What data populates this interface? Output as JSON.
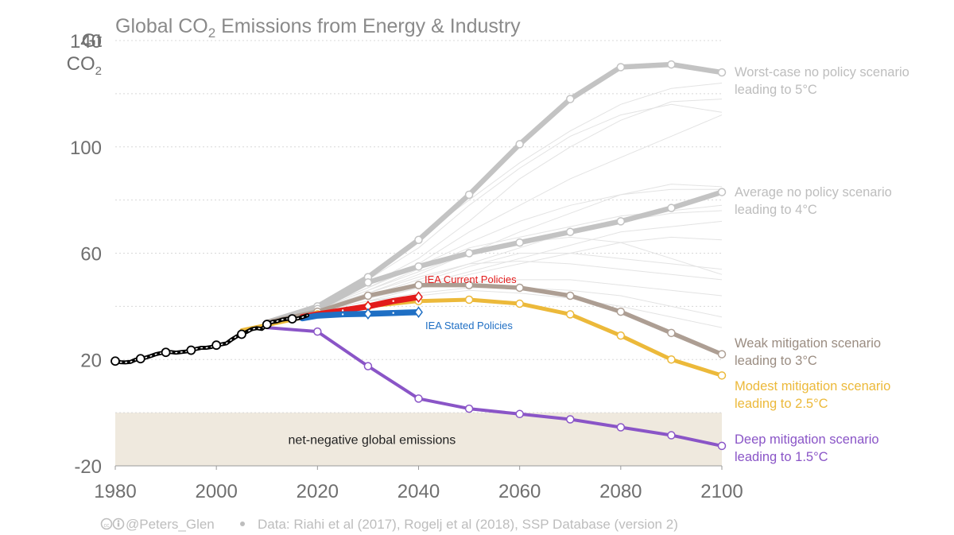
{
  "colors": {
    "grid": "#d8d8d8",
    "bundle": "#e3e3e3",
    "worst": "#c3c3c3",
    "average": "#c3c3c3",
    "weak": "#ad9e93",
    "modest": "#ecb93a",
    "deep": "#8a55c7",
    "iea_current": "#e21b1b",
    "iea_stated": "#1f6fc4",
    "historical": "#000000",
    "negative_region": "#efe9de"
  },
  "chart_data": {
    "type": "line",
    "title_prefix": "Global CO",
    "title_sub": "2",
    "title_suffix": " Emissions from Energy & Industry",
    "y_unit_line1": "Gt",
    "y_unit_line2_prefix": "CO",
    "y_unit_line2_sub": "2",
    "xlim": [
      1980,
      2100
    ],
    "ylim": [
      -20,
      140
    ],
    "x_ticks": [
      1980,
      2000,
      2020,
      2040,
      2060,
      2080,
      2100
    ],
    "y_ticks": [
      -20,
      20,
      60,
      100,
      140
    ],
    "grid": "horizontal dotted",
    "negative_region": {
      "y_from": -20,
      "y_to": 0,
      "label": "net-negative global emissions"
    },
    "historical": {
      "x": [
        1980,
        1981,
        1982,
        1983,
        1984,
        1985,
        1986,
        1987,
        1988,
        1989,
        1990,
        1991,
        1992,
        1993,
        1994,
        1995,
        1996,
        1997,
        1998,
        1999,
        2000,
        2001,
        2002,
        2003,
        2004,
        2005,
        2006,
        2007,
        2008,
        2009,
        2010,
        2011,
        2012,
        2013,
        2014,
        2015,
        2016,
        2017,
        2018
      ],
      "y": [
        19.4,
        19.0,
        18.9,
        19.1,
        19.9,
        20.3,
        20.7,
        21.3,
        22.0,
        22.4,
        22.7,
        22.8,
        22.6,
        22.8,
        23.0,
        23.5,
        24.0,
        24.4,
        24.4,
        24.7,
        25.4,
        25.7,
        26.1,
        27.5,
        28.7,
        29.5,
        30.4,
        31.4,
        31.8,
        31.5,
        33.2,
        34.1,
        34.4,
        35.0,
        35.3,
        35.3,
        35.4,
        35.9,
        36.6
      ],
      "markers_x": [
        1980,
        1985,
        1990,
        1995,
        2000,
        2005,
        2010,
        2015
      ],
      "markers_y": [
        19.4,
        20.3,
        22.7,
        23.5,
        25.4,
        29.5,
        33.2,
        35.3
      ]
    },
    "series": [
      {
        "key": "worst",
        "label_line1": "Worst-case no policy scenario",
        "label_line2": "leading to 5°C",
        "x": [
          2010,
          2020,
          2030,
          2040,
          2050,
          2060,
          2070,
          2080,
          2090,
          2100
        ],
        "y": [
          34,
          40,
          51,
          65,
          82,
          101,
          118,
          130,
          131,
          128
        ]
      },
      {
        "key": "average",
        "label_line1": "Average no policy scenario",
        "label_line2": "leading to 4°C",
        "x": [
          2010,
          2020,
          2030,
          2040,
          2050,
          2060,
          2070,
          2080,
          2090,
          2100
        ],
        "y": [
          34,
          39,
          49,
          55,
          60,
          64,
          68,
          72,
          77,
          83
        ]
      },
      {
        "key": "weak",
        "label_line1": "Weak mitigation scenario",
        "label_line2": "leading to 3°C",
        "x": [
          2010,
          2020,
          2030,
          2040,
          2050,
          2060,
          2070,
          2080,
          2090,
          2100
        ],
        "y": [
          34,
          38,
          44,
          48,
          48,
          47,
          44,
          38,
          30,
          22
        ]
      },
      {
        "key": "modest",
        "label_line1": "Modest mitigation scenario",
        "label_line2": "leading to 2.5°C",
        "x": [
          2005,
          2010,
          2020,
          2030,
          2040,
          2050,
          2060,
          2070,
          2080,
          2090,
          2100
        ],
        "y": [
          31,
          33,
          37,
          40,
          42,
          42.5,
          41,
          37,
          29,
          20,
          14
        ]
      },
      {
        "key": "deep",
        "label_line1": "Deep mitigation scenario",
        "label_line2": "leading to 1.5°C",
        "x": [
          2010,
          2020,
          2030,
          2040,
          2050,
          2060,
          2070,
          2080,
          2090,
          2100
        ],
        "y": [
          32,
          30.5,
          17.5,
          5.3,
          1.5,
          -0.5,
          -2.5,
          -5.5,
          -8.5,
          -12.5
        ]
      },
      {
        "key": "iea_current",
        "label_line1": "IEA Current Policies",
        "x": [
          2017,
          2020,
          2025,
          2030,
          2035,
          2040
        ],
        "y": [
          36,
          37,
          38.5,
          40,
          42,
          43.5
        ]
      },
      {
        "key": "iea_stated",
        "label_line1": "IEA Stated Policies",
        "x": [
          2017,
          2020,
          2025,
          2030,
          2035,
          2040
        ],
        "y": [
          35.5,
          36.5,
          37,
          37.2,
          37.5,
          37.8
        ]
      }
    ],
    "background_bundle": [
      [
        2010,
        34,
        2020,
        39,
        2030,
        45,
        2040,
        52,
        2050,
        60,
        2060,
        68,
        2070,
        75,
        2080,
        82,
        2090,
        86,
        2100,
        85
      ],
      [
        2010,
        34,
        2020,
        40,
        2030,
        48,
        2040,
        58,
        2050,
        72,
        2060,
        88,
        2070,
        100,
        2080,
        110,
        2090,
        117,
        2100,
        118
      ],
      [
        2010,
        34,
        2020,
        40,
        2030,
        50,
        2040,
        62,
        2050,
        78,
        2060,
        92,
        2070,
        104,
        2080,
        112,
        2090,
        116,
        2100,
        113
      ],
      [
        2010,
        34,
        2020,
        39,
        2030,
        47,
        2040,
        56,
        2050,
        68,
        2060,
        78,
        2070,
        88,
        2080,
        96,
        2090,
        104,
        2100,
        112
      ],
      [
        2010,
        34,
        2020,
        39,
        2030,
        46,
        2040,
        54,
        2050,
        62,
        2060,
        66,
        2070,
        70,
        2080,
        74,
        2090,
        76,
        2100,
        78
      ],
      [
        2010,
        34,
        2020,
        38,
        2030,
        44,
        2040,
        50,
        2050,
        56,
        2060,
        62,
        2070,
        68,
        2080,
        72,
        2090,
        75,
        2100,
        76
      ],
      [
        2010,
        34,
        2020,
        38,
        2030,
        43,
        2040,
        48,
        2050,
        53,
        2060,
        58,
        2070,
        63,
        2080,
        68,
        2090,
        70,
        2100,
        72
      ],
      [
        2010,
        34,
        2020,
        38,
        2030,
        42,
        2040,
        47,
        2050,
        52,
        2060,
        56,
        2070,
        60,
        2080,
        64,
        2090,
        66,
        2100,
        65
      ],
      [
        2010,
        34,
        2020,
        39,
        2030,
        45,
        2040,
        51,
        2050,
        56,
        2060,
        57,
        2070,
        56,
        2080,
        54,
        2090,
        52,
        2100,
        50
      ],
      [
        2010,
        34,
        2020,
        38,
        2030,
        43,
        2040,
        47,
        2050,
        49,
        2060,
        50,
        2070,
        50,
        2080,
        48,
        2090,
        46,
        2100,
        44
      ],
      [
        2010,
        34,
        2020,
        38,
        2030,
        42,
        2040,
        45,
        2050,
        47,
        2060,
        47,
        2070,
        46,
        2080,
        44,
        2090,
        40,
        2100,
        36
      ],
      [
        2010,
        34,
        2020,
        38,
        2030,
        42,
        2040,
        44,
        2050,
        46,
        2060,
        45,
        2070,
        43,
        2080,
        40,
        2090,
        36,
        2100,
        32
      ],
      [
        2010,
        34,
        2020,
        39,
        2030,
        46,
        2040,
        53,
        2050,
        60,
        2060,
        64,
        2070,
        66,
        2080,
        64,
        2090,
        58,
        2100,
        52
      ],
      [
        2010,
        34,
        2020,
        39,
        2030,
        47,
        2040,
        55,
        2050,
        64,
        2060,
        72,
        2070,
        78,
        2080,
        82,
        2090,
        84,
        2100,
        84
      ],
      [
        2010,
        34,
        2020,
        40,
        2030,
        52,
        2040,
        66,
        2050,
        80,
        2060,
        94,
        2070,
        106,
        2080,
        116,
        2090,
        122,
        2100,
        124
      ],
      [
        2010,
        34,
        2020,
        38,
        2030,
        43,
        2040,
        49,
        2050,
        55,
        2060,
        60,
        2070,
        60,
        2080,
        58,
        2090,
        56,
        2100,
        54
      ]
    ],
    "footer_handle": "@Peters_Glen",
    "footer_source": "Data: Riahi et al (2017), Rogelj et al (2018), SSP Database (version 2)"
  }
}
